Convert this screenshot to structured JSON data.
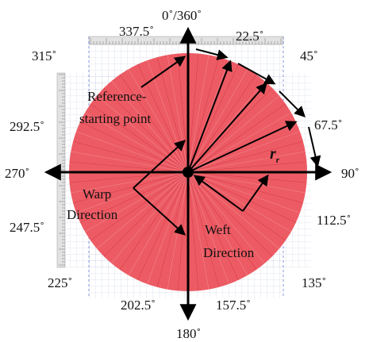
{
  "angles": {
    "a0": "0˚/360˚",
    "a22": "22.5˚",
    "a45": "45˚",
    "a67": "67.5˚",
    "a90": "90˚",
    "a112": "112.5˚",
    "a135": "135˚",
    "a157": "157.5˚",
    "a180": "180˚",
    "a202": "202.5˚",
    "a225": "225˚",
    "a247": "247.5˚",
    "a270": "270˚",
    "a292": "292.5˚",
    "a315": "315˚",
    "a337": "337.5˚"
  },
  "labels": {
    "ref_line1": "Reference-",
    "ref_line2": "starting point",
    "warp_line1": "Warp",
    "warp_line2": "Direction",
    "weft_line1": "Weft",
    "weft_line2": "Direction",
    "radius": "r",
    "radius_sub": "r"
  },
  "colors": {
    "fabric": "#ef5a63",
    "fabric_light": "#f7b8bc",
    "grid": "#9aa6c7",
    "ruler": "#d9d9d9",
    "arrow": "#000000"
  }
}
